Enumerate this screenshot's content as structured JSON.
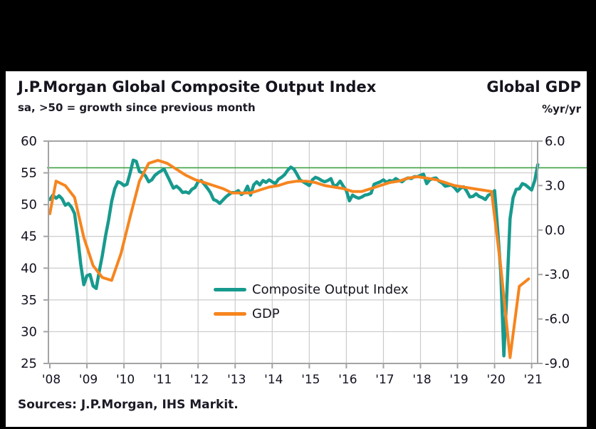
{
  "header": {
    "left_title": "J.P.Morgan Global Composite Output Index",
    "left_subtitle": "sa, >50 = growth since previous month",
    "right_title": "Global GDP",
    "right_subtitle": "%yr/yr"
  },
  "footer": {
    "sources": "Sources: J.P.Morgan, IHS Markit."
  },
  "chart_data": {
    "type": "line",
    "title": "J.P.Morgan Global Composite Output Index",
    "subtitle": "sa, >50 = growth since previous month",
    "right_axis_title": "Global GDP",
    "right_axis_units": "%yr/yr",
    "x_tick_labels": [
      "'08",
      "'09",
      "'10",
      "'11",
      "'12",
      "'13",
      "'14",
      "'15",
      "'16",
      "'17",
      "'18",
      "'19",
      "'20",
      "'21"
    ],
    "left_axis": {
      "min": 25,
      "max": 60,
      "ticks": [
        60,
        55,
        50,
        45,
        40,
        35,
        30,
        25
      ],
      "tick_labels": [
        "60",
        "55",
        "50",
        "45",
        "40",
        "35",
        "30",
        "25"
      ],
      "gridlines": [
        55,
        50,
        45,
        40,
        35,
        30
      ]
    },
    "right_axis": {
      "min": -9,
      "max": 6,
      "ticks": [
        6,
        3,
        0,
        -3,
        -6,
        -9
      ],
      "tick_labels": [
        "6.0",
        "3.0",
        "0.0",
        "-3.0",
        "-6.0",
        "-9.0"
      ]
    },
    "reference_line": {
      "axis": "right",
      "value": 4.2,
      "color": "#3fa144"
    },
    "grid_color": "#cbcbcb",
    "frame_color": "#a4a4a4",
    "series": [
      {
        "name": "Composite Output Index",
        "axis": "left",
        "color": "#179a8e",
        "freq": "monthly",
        "start": "2008-01",
        "values": [
          50.8,
          51.5,
          51.0,
          51.4,
          50.9,
          49.9,
          50.2,
          49.6,
          48.6,
          45.0,
          40.6,
          37.4,
          38.8,
          39.0,
          37.2,
          36.8,
          39.5,
          42.0,
          45.0,
          47.5,
          50.5,
          52.5,
          53.6,
          53.4,
          53.0,
          53.2,
          55.0,
          57.0,
          56.8,
          55.2,
          55.0,
          54.5,
          53.6,
          53.9,
          54.6,
          55.0,
          55.3,
          55.6,
          54.6,
          53.6,
          52.6,
          52.9,
          52.5,
          51.9,
          52.0,
          51.8,
          52.4,
          52.7,
          53.6,
          53.8,
          53.2,
          52.6,
          51.9,
          50.8,
          50.6,
          50.2,
          50.7,
          51.2,
          51.6,
          51.9,
          51.9,
          52.2,
          51.6,
          51.9,
          52.9,
          51.5,
          53.1,
          53.6,
          53.1,
          53.8,
          53.5,
          53.9,
          53.6,
          53.3,
          54.0,
          54.3,
          54.7,
          55.4,
          55.9,
          55.6,
          54.8,
          53.9,
          53.6,
          53.3,
          53.0,
          53.9,
          54.3,
          54.1,
          53.8,
          53.6,
          53.8,
          54.1,
          52.9,
          53.1,
          53.7,
          52.9,
          52.2,
          50.6,
          51.5,
          51.2,
          51.0,
          51.2,
          51.5,
          51.6,
          51.8,
          53.2,
          53.4,
          53.6,
          53.9,
          53.5,
          53.8,
          53.7,
          54.1,
          53.8,
          53.6,
          54.0,
          54.2,
          54.1,
          54.4,
          54.4,
          54.6,
          54.8,
          53.3,
          53.9,
          54.1,
          54.2,
          53.7,
          53.4,
          52.9,
          53.0,
          53.1,
          52.7,
          52.1,
          52.6,
          52.8,
          52.1,
          51.2,
          51.3,
          51.7,
          51.3,
          51.1,
          50.8,
          51.5,
          51.7,
          52.2,
          46.1,
          39.2,
          26.2,
          36.3,
          47.8,
          51.1,
          52.4,
          52.5,
          53.3,
          53.1,
          52.7,
          52.3,
          53.8,
          56.3
        ]
      },
      {
        "name": "GDP",
        "axis": "right",
        "color": "#f6851f",
        "freq": "quarterly",
        "start": "2008-Q1",
        "points": [
          [
            0,
            1.1
          ],
          [
            2,
            3.3
          ],
          [
            5,
            3.0
          ],
          [
            8,
            2.2
          ],
          [
            11,
            -0.5
          ],
          [
            14,
            -2.4
          ],
          [
            17,
            -3.2
          ],
          [
            20,
            -3.4
          ],
          [
            23,
            -1.6
          ],
          [
            26,
            0.9
          ],
          [
            29,
            3.3
          ],
          [
            32,
            4.5
          ],
          [
            35,
            4.7
          ],
          [
            38,
            4.5
          ],
          [
            41,
            4.1
          ],
          [
            44,
            3.7
          ],
          [
            47,
            3.4
          ],
          [
            50,
            3.2
          ],
          [
            53,
            3.0
          ],
          [
            56,
            2.8
          ],
          [
            59,
            2.5
          ],
          [
            62,
            2.5
          ],
          [
            65,
            2.5
          ],
          [
            68,
            2.7
          ],
          [
            71,
            2.9
          ],
          [
            74,
            3.0
          ],
          [
            77,
            3.2
          ],
          [
            80,
            3.3
          ],
          [
            83,
            3.3
          ],
          [
            86,
            3.2
          ],
          [
            89,
            3.0
          ],
          [
            92,
            2.9
          ],
          [
            95,
            2.8
          ],
          [
            98,
            2.6
          ],
          [
            101,
            2.6
          ],
          [
            104,
            2.8
          ],
          [
            107,
            3.0
          ],
          [
            110,
            3.2
          ],
          [
            113,
            3.3
          ],
          [
            116,
            3.5
          ],
          [
            119,
            3.6
          ],
          [
            122,
            3.5
          ],
          [
            125,
            3.4
          ],
          [
            128,
            3.2
          ],
          [
            131,
            3.0
          ],
          [
            134,
            2.9
          ],
          [
            137,
            2.8
          ],
          [
            140,
            2.7
          ],
          [
            143,
            2.6
          ],
          [
            146,
            -2.5
          ],
          [
            149,
            -8.6
          ],
          [
            152,
            -3.8
          ],
          [
            155,
            -3.3
          ]
        ]
      }
    ]
  }
}
